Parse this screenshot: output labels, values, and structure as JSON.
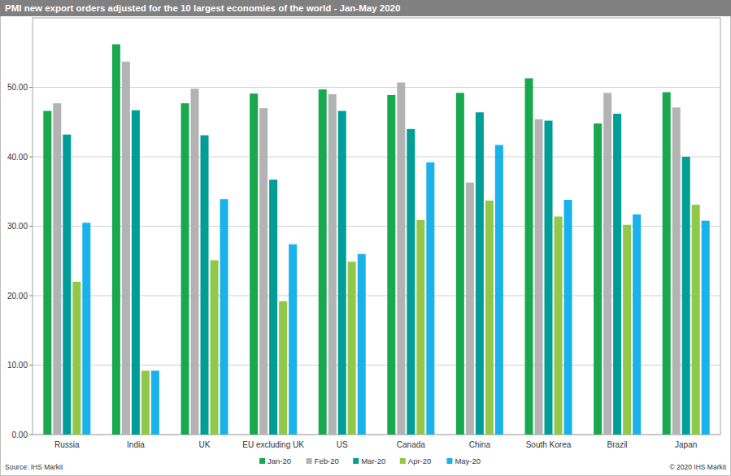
{
  "chart_data": {
    "type": "bar",
    "title": "PMI new export orders adjusted for the 10 largest economies of the world  - Jan-May 2020",
    "categories": [
      "Russia",
      "India",
      "UK",
      "EU excluding UK",
      "US",
      "Canada",
      "China",
      "South Korea",
      "Brazil",
      "Japan"
    ],
    "series": [
      {
        "name": "Jan-20",
        "color": "#1aa84f",
        "values": [
          46.6,
          56.2,
          47.7,
          49.1,
          49.7,
          48.9,
          49.2,
          51.3,
          44.8,
          49.3
        ]
      },
      {
        "name": "Feb-20",
        "color": "#b3b3b3",
        "values": [
          47.7,
          53.7,
          49.8,
          47.0,
          49.0,
          50.7,
          36.3,
          45.4,
          49.2,
          47.1
        ]
      },
      {
        "name": "Mar-20",
        "color": "#009e96",
        "values": [
          43.2,
          46.7,
          43.1,
          36.7,
          46.6,
          44.0,
          46.4,
          45.2,
          46.2,
          40.0
        ]
      },
      {
        "name": "Apr-20",
        "color": "#92c84a",
        "values": [
          22.0,
          9.2,
          25.1,
          19.2,
          24.9,
          30.9,
          33.7,
          31.4,
          30.2,
          33.1
        ]
      },
      {
        "name": "May-20",
        "color": "#1ab2ea",
        "values": [
          30.5,
          9.2,
          33.9,
          27.4,
          26.0,
          39.2,
          41.7,
          33.8,
          31.7,
          30.8
        ]
      }
    ],
    "ylim": [
      0,
      60
    ],
    "yticks": [
      {
        "value": 0,
        "label": "0.00"
      },
      {
        "value": 10,
        "label": "10.00"
      },
      {
        "value": 20,
        "label": "20.00"
      },
      {
        "value": 30,
        "label": "30.00"
      },
      {
        "value": 40,
        "label": "40.00"
      },
      {
        "value": 50,
        "label": "50.00"
      }
    ],
    "grid": true,
    "legend": "bottom",
    "annotations": [
      "Source: IHS Markit",
      "© 2020 IHS Markit"
    ]
  }
}
